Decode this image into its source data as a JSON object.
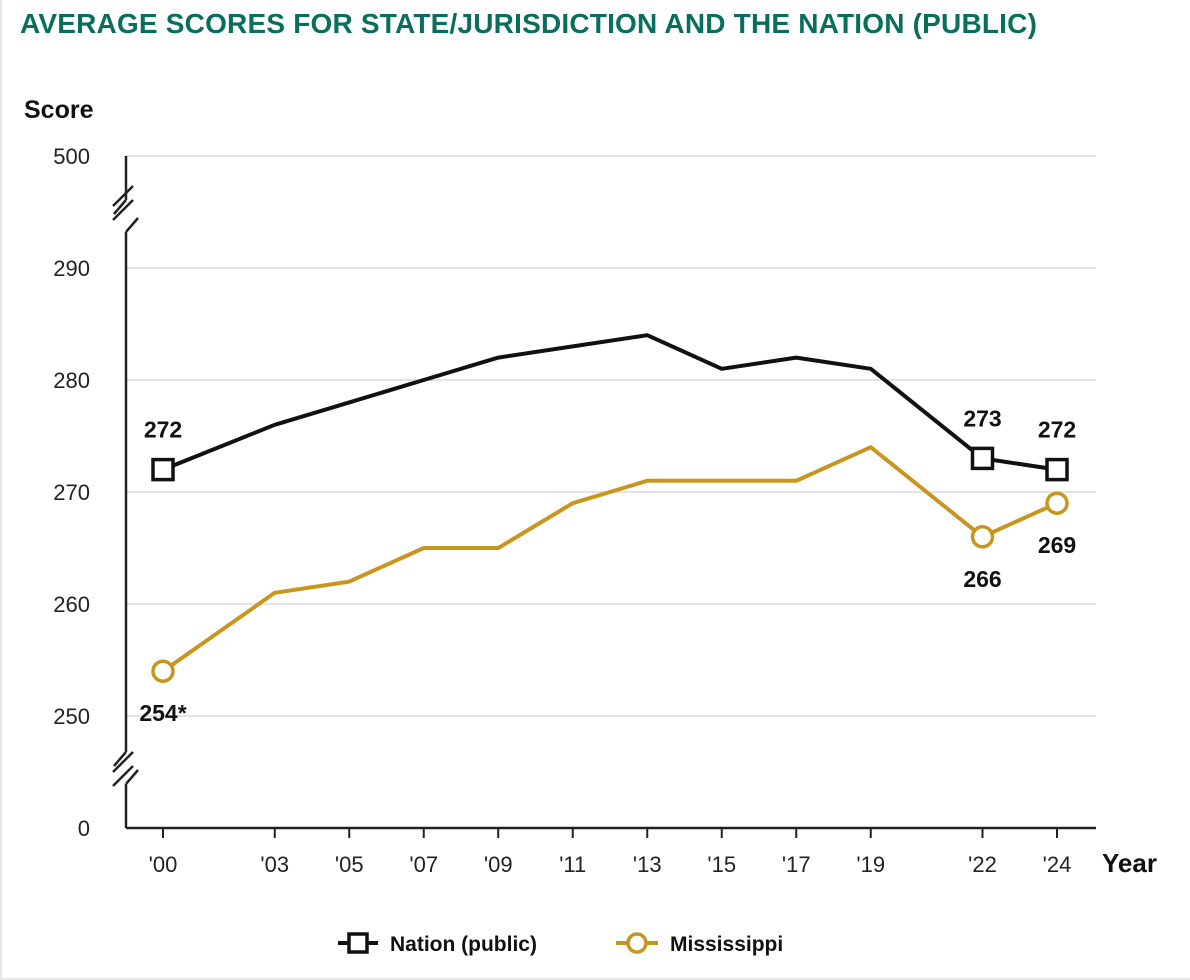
{
  "chart_data": {
    "type": "line",
    "title": "AVERAGE SCORES FOR STATE/JURISDICTION AND THE NATION (PUBLIC)",
    "ylabel": "Score",
    "xlabel": "Year",
    "x": [
      2000,
      2003,
      2005,
      2007,
      2009,
      2011,
      2013,
      2015,
      2017,
      2019,
      2022,
      2024
    ],
    "x_tick_labels": [
      "'00",
      "'03",
      "'05",
      "'07",
      "'09",
      "'11",
      "'13",
      "'15",
      "'17",
      "'19",
      "'22",
      "'24"
    ],
    "y_ticks": [
      250,
      260,
      270,
      280,
      290
    ],
    "y_break_ticks": {
      "top": "500",
      "bottom": "0"
    },
    "ylim": [
      250,
      290
    ],
    "grid": true,
    "axis_breaks": true,
    "legend_position": "bottom",
    "series": [
      {
        "name": "Nation (public)",
        "color": "#111111",
        "marker": "square",
        "values": [
          272,
          276,
          278,
          280,
          282,
          283,
          284,
          281,
          282,
          281,
          273,
          272
        ],
        "labeled_points": [
          {
            "index": 0,
            "label": "272",
            "position": "above"
          },
          {
            "index": 10,
            "label": "273",
            "position": "above"
          },
          {
            "index": 11,
            "label": "272",
            "position": "above"
          }
        ],
        "marker_indices": [
          0,
          10,
          11
        ]
      },
      {
        "name": "Mississippi",
        "color": "#c8961e",
        "marker": "circle",
        "values": [
          254,
          261,
          262,
          265,
          265,
          269,
          271,
          271,
          271,
          274,
          266,
          269
        ],
        "labeled_points": [
          {
            "index": 0,
            "label": "254*",
            "position": "below"
          },
          {
            "index": 10,
            "label": "266",
            "position": "below"
          },
          {
            "index": 11,
            "label": "269",
            "position": "below"
          }
        ],
        "marker_indices": [
          0,
          10,
          11
        ]
      }
    ]
  }
}
